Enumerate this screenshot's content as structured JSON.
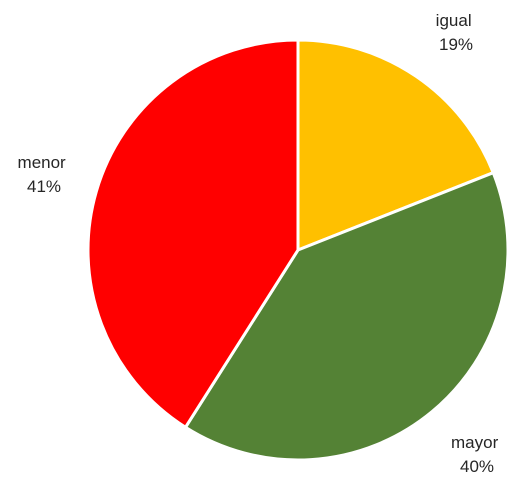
{
  "chart_data": {
    "type": "pie",
    "title": "",
    "slices": [
      {
        "label": "igual",
        "percent_label": "19%",
        "value": 19,
        "color": "#FFC000"
      },
      {
        "label": "mayor",
        "percent_label": "40%",
        "value": 40,
        "color": "#548235"
      },
      {
        "label": "menor",
        "percent_label": "41%",
        "value": 41,
        "color": "#FF0000"
      }
    ],
    "start_angle": "12 o'clock",
    "direction": "clockwise",
    "legend": "none",
    "slice_border_color": "#FFFFFF"
  }
}
